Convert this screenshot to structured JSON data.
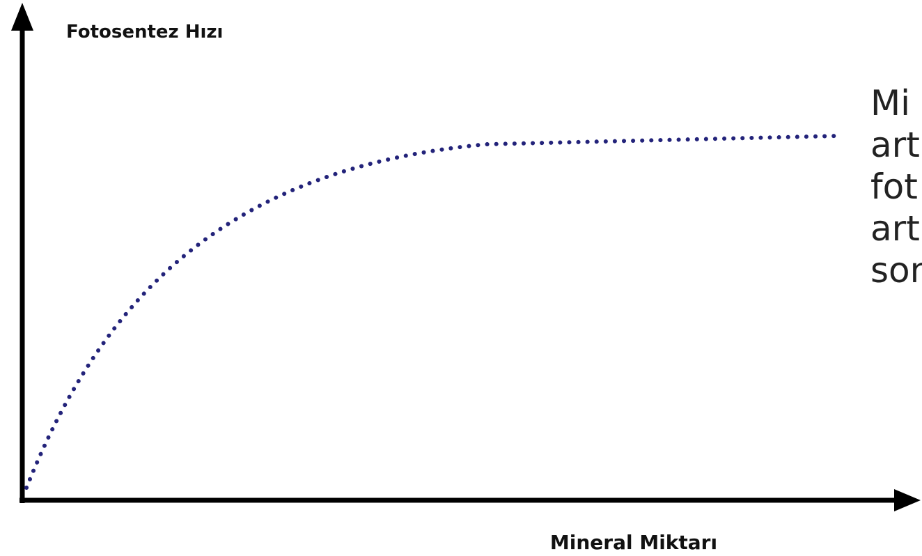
{
  "y_axis_label": "Fotosentez Hızı",
  "x_axis_label": "Mineral Miktarı",
  "note_lines": [
    "Mi",
    "art",
    "fot",
    "art",
    "son"
  ]
}
